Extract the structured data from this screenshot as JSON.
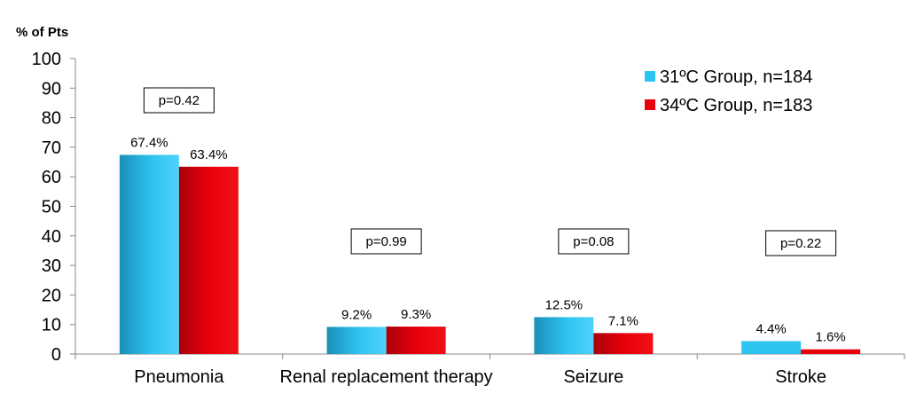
{
  "chart_data": {
    "type": "bar",
    "ylabel": "% of Pts",
    "ylim": [
      0,
      100
    ],
    "yticks": [
      0,
      10,
      20,
      30,
      40,
      50,
      60,
      70,
      80,
      90,
      100
    ],
    "categories": [
      "Pneumonia",
      "Renal replacement therapy",
      "Seizure",
      "Stroke"
    ],
    "series": [
      {
        "name": "31ºC Group, n=184",
        "values": [
          67.4,
          9.2,
          12.5,
          4.4
        ],
        "labels": [
          "67.4%",
          "9.2%",
          "12.5%",
          "4.4%"
        ],
        "color": "#2ec4f0"
      },
      {
        "name": "34ºC Group, n=183",
        "values": [
          63.4,
          9.3,
          7.1,
          1.6
        ],
        "labels": [
          "63.4%",
          "9.3%",
          "7.1%",
          "1.6%"
        ],
        "color": "#e8000b"
      }
    ],
    "p_values": [
      "p=0.42",
      "p=0.99",
      "p=0.08",
      "p=0.22"
    ],
    "legend_position": "top-right",
    "grid": false
  }
}
